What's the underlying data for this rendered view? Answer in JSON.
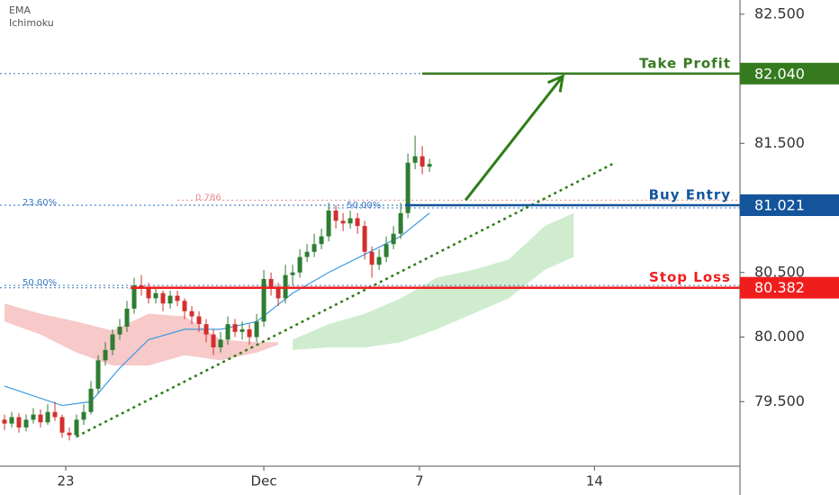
{
  "chart_data": {
    "type": "candlestick",
    "indicators": [
      "EMA",
      "Ichimoku"
    ],
    "xlim": [
      -0.625,
      102.1
    ],
    "ylim": [
      79.0,
      82.61
    ],
    "xticks": [
      {
        "value": 8.5,
        "label": "23"
      },
      {
        "value": 36,
        "label": "Dec"
      },
      {
        "value": 57.6,
        "label": "7"
      },
      {
        "value": 81.9,
        "label": "14"
      }
    ],
    "yticks": [
      {
        "value": 82.5,
        "label": "82.500"
      },
      {
        "value": 81.5,
        "label": "81.500"
      },
      {
        "value": 80.5,
        "label": "80.500"
      },
      {
        "value": 80.0,
        "label": "80.000"
      },
      {
        "value": 79.5,
        "label": "79.500"
      }
    ],
    "up_color": "#2e7d32",
    "down_color": "#d32f2f",
    "ohlc": [
      [
        79.36,
        79.4,
        79.28,
        79.33
      ],
      [
        79.33,
        79.42,
        79.3,
        79.38
      ],
      [
        79.38,
        79.41,
        79.26,
        79.3
      ],
      [
        79.3,
        79.4,
        79.27,
        79.36
      ],
      [
        79.36,
        79.45,
        79.33,
        79.4
      ],
      [
        79.4,
        79.44,
        79.3,
        79.34
      ],
      [
        79.34,
        79.48,
        79.32,
        79.42
      ],
      [
        79.42,
        79.5,
        79.35,
        79.38
      ],
      [
        79.38,
        79.4,
        79.22,
        79.26
      ],
      [
        79.26,
        79.3,
        79.2,
        79.24
      ],
      [
        79.24,
        79.4,
        79.22,
        79.36
      ],
      [
        79.36,
        79.48,
        79.32,
        79.42
      ],
      [
        79.42,
        79.66,
        79.4,
        79.6
      ],
      [
        79.6,
        79.86,
        79.56,
        79.82
      ],
      [
        79.82,
        79.96,
        79.78,
        79.9
      ],
      [
        79.9,
        80.06,
        79.86,
        80.02
      ],
      [
        80.02,
        80.14,
        79.98,
        80.08
      ],
      [
        80.08,
        80.28,
        80.04,
        80.22
      ],
      [
        80.22,
        80.46,
        80.18,
        80.4
      ],
      [
        80.4,
        80.48,
        80.32,
        80.38
      ],
      [
        80.38,
        80.42,
        80.26,
        80.3
      ],
      [
        80.3,
        80.38,
        80.26,
        80.34
      ],
      [
        80.34,
        80.36,
        80.2,
        80.26
      ],
      [
        80.26,
        80.36,
        80.22,
        80.32
      ],
      [
        80.32,
        80.36,
        80.24,
        80.28
      ],
      [
        80.28,
        80.3,
        80.14,
        80.2
      ],
      [
        80.2,
        80.24,
        80.1,
        80.16
      ],
      [
        80.16,
        80.2,
        80.04,
        80.1
      ],
      [
        80.1,
        80.14,
        79.96,
        80.02
      ],
      [
        80.02,
        80.06,
        79.86,
        79.92
      ],
      [
        79.92,
        80.04,
        79.88,
        79.98
      ],
      [
        79.98,
        80.16,
        79.94,
        80.1
      ],
      [
        80.1,
        80.14,
        80.0,
        80.04
      ],
      [
        80.04,
        80.12,
        79.98,
        80.06
      ],
      [
        80.06,
        80.1,
        79.94,
        80.0
      ],
      [
        80.0,
        80.18,
        79.96,
        80.12
      ],
      [
        80.12,
        80.52,
        80.08,
        80.45
      ],
      [
        80.45,
        80.5,
        80.32,
        80.38
      ],
      [
        80.38,
        80.42,
        80.24,
        80.3
      ],
      [
        80.3,
        80.56,
        80.26,
        80.48
      ],
      [
        80.48,
        80.56,
        80.4,
        80.5
      ],
      [
        80.5,
        80.68,
        80.46,
        80.62
      ],
      [
        80.62,
        80.72,
        80.58,
        80.66
      ],
      [
        80.66,
        80.8,
        80.62,
        80.72
      ],
      [
        80.72,
        80.84,
        80.68,
        80.78
      ],
      [
        80.78,
        81.04,
        80.74,
        80.98
      ],
      [
        80.98,
        81.02,
        80.84,
        80.9
      ],
      [
        80.9,
        80.96,
        80.82,
        80.88
      ],
      [
        80.88,
        80.98,
        80.84,
        80.92
      ],
      [
        80.92,
        80.96,
        80.8,
        80.86
      ],
      [
        80.86,
        80.9,
        80.6,
        80.66
      ],
      [
        80.66,
        80.7,
        80.46,
        80.56
      ],
      [
        80.56,
        80.68,
        80.52,
        80.62
      ],
      [
        80.62,
        80.78,
        80.58,
        80.72
      ],
      [
        80.72,
        80.86,
        80.68,
        80.8
      ],
      [
        80.8,
        81.04,
        80.76,
        80.96
      ],
      [
        80.96,
        81.42,
        80.92,
        81.35
      ],
      [
        81.35,
        81.56,
        81.3,
        81.4
      ],
      [
        81.4,
        81.48,
        81.26,
        81.32
      ],
      [
        81.32,
        81.38,
        81.28,
        81.34
      ]
    ],
    "ema": {
      "color": "#3d9be0",
      "x": [
        0,
        8,
        12,
        16,
        20,
        25,
        30,
        35,
        40,
        45,
        50,
        55,
        59
      ],
      "values": [
        79.62,
        79.47,
        79.5,
        79.76,
        79.98,
        80.06,
        80.06,
        80.12,
        80.34,
        80.5,
        80.64,
        80.78,
        80.96
      ]
    },
    "clouds": [
      {
        "color": "#f7c9c9",
        "x": [
          0,
          5,
          10,
          15,
          20,
          25,
          30,
          35,
          38
        ],
        "top": [
          80.26,
          80.18,
          80.12,
          80.05,
          80.18,
          80.16,
          79.98,
          79.96,
          79.96
        ],
        "bottom": [
          80.12,
          80.02,
          79.88,
          79.78,
          79.78,
          79.86,
          79.82,
          79.88,
          79.94
        ]
      },
      {
        "color": "#cfeccf",
        "x": [
          40,
          45,
          50,
          55,
          60,
          65,
          70,
          75,
          79
        ],
        "top": [
          79.98,
          80.1,
          80.18,
          80.3,
          80.46,
          80.52,
          80.6,
          80.86,
          80.96
        ],
        "bottom": [
          79.9,
          79.92,
          79.92,
          79.96,
          80.06,
          80.18,
          80.3,
          80.52,
          80.62
        ]
      }
    ],
    "trendline": {
      "color": "#2e7d16",
      "x": [
        10,
        84.4
      ],
      "values": [
        79.23,
        81.34
      ]
    },
    "arrow": {
      "color": "#2e7d16",
      "x": [
        64,
        77.5
      ],
      "values": [
        81.06,
        82.02
      ]
    },
    "fib_lines": [
      {
        "label": "23.60%",
        "value": 81.02,
        "color": "#3b78c4",
        "x_label": 0
      },
      {
        "label": "50.00%",
        "value": 80.4,
        "color": "#3b78c4",
        "x_label": 0
      },
      {
        "label": "0.786",
        "value": 81.06,
        "color": "#e88a8a",
        "x_label": 24
      },
      {
        "label": "50.00%",
        "value": 81.0,
        "color": "#3b78c4",
        "x_label": 45
      }
    ],
    "levels": [
      {
        "label": "Take Profit",
        "value": 82.04,
        "value_label": "82.040",
        "color": "#357a1f",
        "x_start": 58
      },
      {
        "label": "Buy Entry",
        "value": 81.021,
        "value_label": "81.021",
        "color": "#13549b",
        "x_start": 55.6
      },
      {
        "label": "Stop Loss",
        "value": 80.382,
        "value_label": "80.382",
        "color": "#f01d1d",
        "x_start": 17.5
      }
    ]
  }
}
